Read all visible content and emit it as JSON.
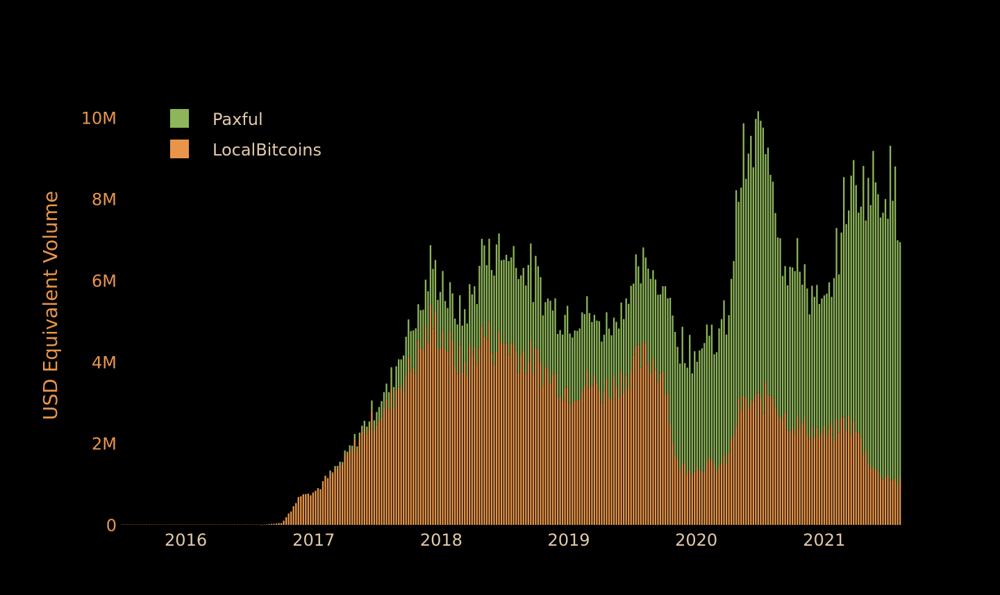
{
  "chart_data": {
    "type": "bar",
    "stacked": true,
    "title": "",
    "xlabel": "",
    "ylabel": "USD Equivalent Volume",
    "ylim": [
      0,
      10500000
    ],
    "xlim": [
      "2015-07-01",
      "2021-08-10"
    ],
    "x_ticks": [
      "2016",
      "2017",
      "2018",
      "2019",
      "2020",
      "2021"
    ],
    "y_ticks": [
      {
        "value": 0,
        "label": "0"
      },
      {
        "value": 2000000,
        "label": "2M"
      },
      {
        "value": 4000000,
        "label": "4M"
      },
      {
        "value": 6000000,
        "label": "6M"
      },
      {
        "value": 8000000,
        "label": "8M"
      },
      {
        "value": 10000000,
        "label": "10M"
      }
    ],
    "grid": false,
    "legend_position": "top-left",
    "bar_interval": "weekly",
    "series": [
      {
        "name": "LocalBitcoins",
        "color": "#e8954a",
        "points": [
          [
            "2015-07",
            0
          ],
          [
            "2016-03",
            0
          ],
          [
            "2016-08",
            0
          ],
          [
            "2016-10",
            50000
          ],
          [
            "2016-11",
            450000
          ],
          [
            "2016-12",
            850000
          ],
          [
            "2017-01",
            800000
          ],
          [
            "2017-02",
            1100000
          ],
          [
            "2017-03",
            1300000
          ],
          [
            "2017-04",
            1600000
          ],
          [
            "2017-05",
            2000000
          ],
          [
            "2017-06",
            2400000
          ],
          [
            "2017-07",
            2700000
          ],
          [
            "2017-08",
            2900000
          ],
          [
            "2017-09",
            3500000
          ],
          [
            "2017-10",
            3800000
          ],
          [
            "2017-11",
            4300000
          ],
          [
            "2017-12",
            5000000
          ],
          [
            "2018-01",
            4700000
          ],
          [
            "2018-02",
            4200000
          ],
          [
            "2018-03",
            3900000
          ],
          [
            "2018-04",
            4200000
          ],
          [
            "2018-05",
            4700000
          ],
          [
            "2018-06",
            4400000
          ],
          [
            "2018-07",
            4500000
          ],
          [
            "2018-08",
            4300000
          ],
          [
            "2018-09",
            4100000
          ],
          [
            "2018-10",
            4000000
          ],
          [
            "2018-11",
            3700000
          ],
          [
            "2018-12",
            3500000
          ],
          [
            "2019-01",
            3300000
          ],
          [
            "2019-02",
            3400000
          ],
          [
            "2019-03",
            3500000
          ],
          [
            "2019-04",
            3300000
          ],
          [
            "2019-05",
            3400000
          ],
          [
            "2019-06",
            3600000
          ],
          [
            "2019-07",
            3900000
          ],
          [
            "2019-08",
            4100000
          ],
          [
            "2019-09",
            4000000
          ],
          [
            "2019-10",
            3700000
          ],
          [
            "2019-11",
            1500000
          ],
          [
            "2019-12",
            1400000
          ],
          [
            "2020-01",
            1400000
          ],
          [
            "2020-02",
            1500000
          ],
          [
            "2020-03",
            1400000
          ],
          [
            "2020-04",
            1700000
          ],
          [
            "2020-05",
            2900000
          ],
          [
            "2020-06",
            3000000
          ],
          [
            "2020-07",
            3000000
          ],
          [
            "2020-08",
            3300000
          ],
          [
            "2020-09",
            2700000
          ],
          [
            "2020-10",
            2500000
          ],
          [
            "2020-11",
            2400000
          ],
          [
            "2020-12",
            2300000
          ],
          [
            "2021-01",
            2200000
          ],
          [
            "2021-02",
            2300000
          ],
          [
            "2021-03",
            2600000
          ],
          [
            "2021-04",
            2300000
          ],
          [
            "2021-05",
            1700000
          ],
          [
            "2021-06",
            1250000
          ],
          [
            "2021-07",
            1200000
          ],
          [
            "2021-08",
            1050000
          ]
        ]
      },
      {
        "name": "Paxful",
        "color": "#8db55a",
        "points": [
          [
            "2015-07",
            0
          ],
          [
            "2016-03",
            0
          ],
          [
            "2016-08",
            0
          ],
          [
            "2016-10",
            0
          ],
          [
            "2016-11",
            0
          ],
          [
            "2016-12",
            0
          ],
          [
            "2017-01",
            0
          ],
          [
            "2017-02",
            0
          ],
          [
            "2017-03",
            50000
          ],
          [
            "2017-04",
            80000
          ],
          [
            "2017-05",
            120000
          ],
          [
            "2017-06",
            200000
          ],
          [
            "2017-07",
            300000
          ],
          [
            "2017-08",
            450000
          ],
          [
            "2017-09",
            700000
          ],
          [
            "2017-10",
            1100000
          ],
          [
            "2017-11",
            1000000
          ],
          [
            "2017-12",
            1300000
          ],
          [
            "2018-01",
            1300000
          ],
          [
            "2018-02",
            1100000
          ],
          [
            "2018-03",
            1200000
          ],
          [
            "2018-04",
            1500000
          ],
          [
            "2018-05",
            2000000
          ],
          [
            "2018-06",
            2300000
          ],
          [
            "2018-07",
            2300000
          ],
          [
            "2018-08",
            2300000
          ],
          [
            "2018-09",
            2300000
          ],
          [
            "2018-10",
            1900000
          ],
          [
            "2018-11",
            1800000
          ],
          [
            "2018-12",
            1700000
          ],
          [
            "2019-01",
            1800000
          ],
          [
            "2019-02",
            1800000
          ],
          [
            "2019-03",
            1700000
          ],
          [
            "2019-04",
            1500000
          ],
          [
            "2019-05",
            1600000
          ],
          [
            "2019-06",
            1800000
          ],
          [
            "2019-07",
            2000000
          ],
          [
            "2019-08",
            2200000
          ],
          [
            "2019-09",
            2100000
          ],
          [
            "2019-10",
            2300000
          ],
          [
            "2019-11",
            3200000
          ],
          [
            "2019-12",
            2900000
          ],
          [
            "2020-01",
            2900000
          ],
          [
            "2020-02",
            3200000
          ],
          [
            "2020-03",
            3100000
          ],
          [
            "2020-04",
            3600000
          ],
          [
            "2020-05",
            5800000
          ],
          [
            "2020-06",
            5900000
          ],
          [
            "2020-07",
            6600000
          ],
          [
            "2020-08",
            6000000
          ],
          [
            "2020-09",
            4000000
          ],
          [
            "2020-10",
            3900000
          ],
          [
            "2020-11",
            3800000
          ],
          [
            "2020-12",
            3200000
          ],
          [
            "2021-01",
            3000000
          ],
          [
            "2021-02",
            4000000
          ],
          [
            "2021-03",
            5500000
          ],
          [
            "2021-04",
            6000000
          ],
          [
            "2021-05",
            6700000
          ],
          [
            "2021-06",
            7100000
          ],
          [
            "2021-07",
            7400000
          ],
          [
            "2021-08",
            6600000
          ]
        ]
      }
    ]
  }
}
